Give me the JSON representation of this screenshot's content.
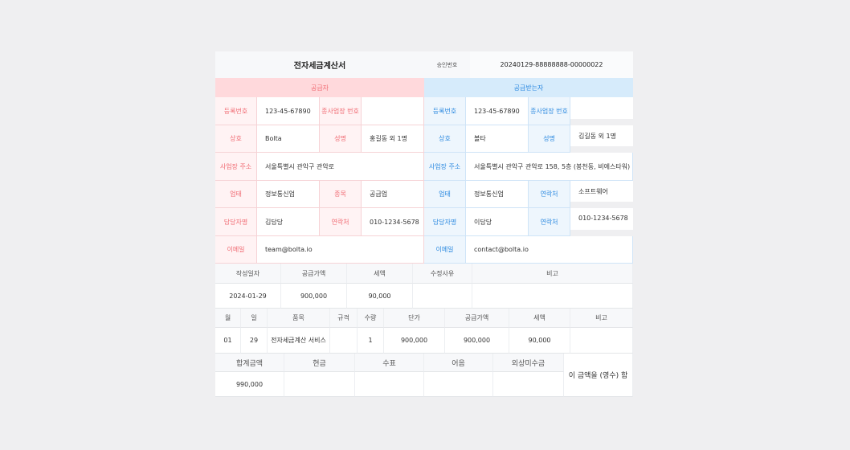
{
  "title": "전자세금계산서",
  "approval": {
    "label": "승인번호",
    "value": "20240129-88888888-00000022"
  },
  "supplier": {
    "header": "공급자",
    "reg_label": "등록번호",
    "reg": "123-45-67890",
    "sub_label": "종사업장 번호",
    "sub": "",
    "name_label": "상호",
    "name": "Bolta",
    "rep_label": "성명",
    "rep": "홍길동 외 1명",
    "addr_label": "사업장 주소",
    "addr": "서울특별시 관악구 관악로",
    "type_label": "업태",
    "type": "정보통신업",
    "item_label": "종목",
    "item": "공급업",
    "mgr_label": "담당자명",
    "mgr": "김담당",
    "phone_label": "연락처",
    "phone": "010-1234-5678",
    "email_label": "이메일",
    "email": "team@bolta.io"
  },
  "receiver": {
    "header": "공급받는자",
    "reg_label": "등록번호",
    "reg": "123-45-67890",
    "sub_label": "종사업장 번호",
    "sub": "",
    "name_label": "상호",
    "name": "볼타",
    "rep_label": "성명",
    "rep": "김길동 외 1명",
    "addr_label": "사업장 주소",
    "addr": "서울특별시 관악구 관악로 158, 5층 (봉천동, 비에스타워)",
    "type_label": "업태",
    "type": "정보통신업",
    "item_label": "연락처",
    "item": "소프트웨어",
    "mgr_label": "담당자명",
    "mgr": "이담당",
    "phone_label": "연락처",
    "phone": "010-1234-5678",
    "email_label": "이메일",
    "email": "contact@bolta.io"
  },
  "summary": {
    "headers": [
      "작성일자",
      "공급가액",
      "세액",
      "수정사유",
      "비고"
    ],
    "values": [
      "2024-01-29",
      "900,000",
      "90,000",
      "",
      ""
    ]
  },
  "items": {
    "headers": [
      "월",
      "일",
      "품목",
      "규격",
      "수량",
      "단가",
      "공급가액",
      "세액",
      "비고"
    ],
    "rows": [
      [
        "01",
        "29",
        "전자세금계산 서비스",
        "",
        "1",
        "900,000",
        "900,000",
        "90,000",
        ""
      ]
    ]
  },
  "totals": {
    "headers": [
      "합계금액",
      "현금",
      "수표",
      "어음",
      "외상미수금"
    ],
    "values": [
      "990,000",
      "",
      "",
      "",
      ""
    ],
    "receipt": "이 금액을 (영수) 함"
  }
}
